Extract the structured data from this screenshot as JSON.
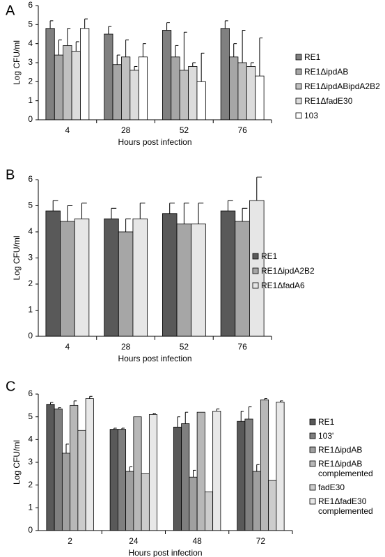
{
  "chart_data": [
    {
      "type": "bar",
      "label": "A",
      "ylabel": "Log CFU/ml",
      "xlabel": "Hours post infection",
      "categories": [
        "4",
        "28",
        "52",
        "76"
      ],
      "ylim": [
        0,
        6
      ],
      "yticks": [
        0,
        1,
        2,
        3,
        4,
        5,
        6
      ],
      "series": [
        {
          "name": "RE1",
          "color": "#808080",
          "values": [
            4.8,
            4.5,
            4.7,
            4.8
          ],
          "errors": [
            0.4,
            0.4,
            0.4,
            0.4
          ]
        },
        {
          "name": "RE1ΔipdAB",
          "color": "#a6a6a6",
          "values": [
            3.4,
            2.9,
            3.3,
            3.3
          ],
          "errors": [
            0.8,
            0.5,
            0.6,
            0.7
          ]
        },
        {
          "name": "RE1ΔipdABipdA2B2",
          "color": "#c0c0c0",
          "values": [
            3.9,
            3.3,
            2.6,
            3.0
          ],
          "errors": [
            0.9,
            0.9,
            2.0,
            1.7
          ]
        },
        {
          "name": "RE1ΔfadE30",
          "color": "#dcdcdc",
          "values": [
            3.6,
            2.6,
            2.8,
            2.8
          ],
          "errors": [
            0.5,
            0.2,
            0.2,
            0.2
          ]
        },
        {
          "name": "103",
          "color": "#ffffff",
          "values": [
            4.8,
            3.3,
            2.0,
            2.3
          ],
          "errors": [
            0.5,
            0.7,
            1.5,
            2.0
          ]
        }
      ]
    },
    {
      "type": "bar",
      "label": "B",
      "ylabel": "Log CFU/ml",
      "xlabel": "Hours post infection",
      "categories": [
        "4",
        "28",
        "52",
        "76"
      ],
      "ylim": [
        0,
        6
      ],
      "yticks": [
        0,
        1,
        2,
        3,
        4,
        5,
        6
      ],
      "series": [
        {
          "name": "RE1",
          "color": "#595959",
          "values": [
            4.8,
            4.5,
            4.7,
            4.8
          ],
          "errors": [
            0.4,
            0.4,
            0.4,
            0.4
          ]
        },
        {
          "name": "RE1ΔipdA2B2",
          "color": "#a6a6a6",
          "values": [
            4.4,
            4.0,
            4.3,
            4.4
          ],
          "errors": [
            0.6,
            0.5,
            0.8,
            0.5
          ]
        },
        {
          "name": "RE1ΔfadA6",
          "color": "#e6e6e6",
          "values": [
            4.5,
            4.5,
            4.3,
            5.2
          ],
          "errors": [
            0.6,
            0.6,
            0.8,
            0.9
          ]
        }
      ]
    },
    {
      "type": "bar",
      "label": "C",
      "ylabel": "Log CFU/ml",
      "xlabel": "Hours post infection",
      "categories": [
        "2",
        "24",
        "48",
        "72"
      ],
      "ylim": [
        0,
        6
      ],
      "yticks": [
        0,
        1,
        2,
        3,
        4,
        5,
        6
      ],
      "series": [
        {
          "name": "RE1",
          "color": "#595959",
          "values": [
            5.55,
            4.45,
            4.55,
            4.8
          ],
          "errors": [
            0.08,
            0.05,
            0.45,
            0.45
          ]
        },
        {
          "name": "103'",
          "color": "#7f7f7f",
          "values": [
            5.35,
            4.45,
            4.7,
            4.9
          ],
          "errors": [
            0.05,
            0.05,
            0.5,
            0.55
          ]
        },
        {
          "name": "RE1ΔipdAB",
          "color": "#a0a0a0",
          "values": [
            3.4,
            2.6,
            2.35,
            2.6
          ],
          "errors": [
            0.4,
            0.2,
            0.3,
            0.3
          ]
        },
        {
          "name": "RE1ΔipdAB complemented",
          "color": "#b8b8b8",
          "values": [
            5.5,
            5.0,
            5.2,
            5.75
          ],
          "errors": [
            0.2,
            null,
            null,
            0.05
          ]
        },
        {
          "name": "fadE30",
          "color": "#cccccc",
          "values": [
            4.4,
            2.5,
            1.7,
            2.2
          ],
          "errors": [
            null,
            null,
            null,
            null
          ]
        },
        {
          "name": "RE1ΔfadE30 complemented",
          "color": "#e8e8e8",
          "values": [
            5.8,
            5.1,
            5.25,
            5.65
          ],
          "errors": [
            0.1,
            0.05,
            0.1,
            0.05
          ]
        }
      ]
    }
  ]
}
